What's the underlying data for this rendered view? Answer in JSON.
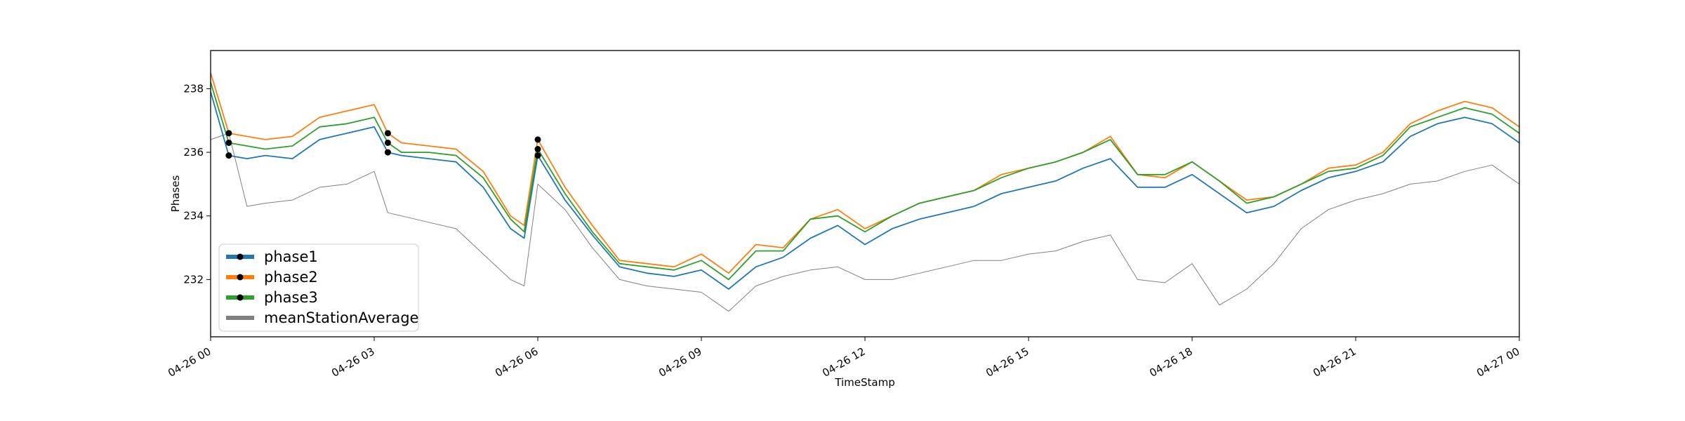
{
  "chart_data": {
    "type": "line",
    "title": "",
    "xlabel": "TimeStamp",
    "ylabel": "Phases",
    "xlim": [
      "2024-04-26 00:00",
      "2024-04-27 00:00"
    ],
    "ylim": [
      230.2,
      239.2
    ],
    "x_ticks": [
      {
        "value": "2024-04-26 00:00",
        "label": "04-26 00"
      },
      {
        "value": "2024-04-26 03:00",
        "label": "04-26 03"
      },
      {
        "value": "2024-04-26 06:00",
        "label": "04-26 06"
      },
      {
        "value": "2024-04-26 09:00",
        "label": "04-26 09"
      },
      {
        "value": "2024-04-26 12:00",
        "label": "04-26 12"
      },
      {
        "value": "2024-04-26 15:00",
        "label": "04-26 15"
      },
      {
        "value": "2024-04-26 18:00",
        "label": "04-26 18"
      },
      {
        "value": "2024-04-26 21:00",
        "label": "04-26 21"
      },
      {
        "value": "2024-04-27 00:00",
        "label": "04-27 00"
      }
    ],
    "y_ticks": [
      {
        "value": 232,
        "label": "232"
      },
      {
        "value": 234,
        "label": "234"
      },
      {
        "value": 236,
        "label": "236"
      },
      {
        "value": 238,
        "label": "238"
      }
    ],
    "grid": false,
    "legend": {
      "position": "lower-left"
    },
    "x": [
      "2024-04-26 00:00",
      "2024-04-26 00:20",
      "2024-04-26 00:40",
      "2024-04-26 01:00",
      "2024-04-26 01:30",
      "2024-04-26 02:00",
      "2024-04-26 02:30",
      "2024-04-26 03:00",
      "2024-04-26 03:15",
      "2024-04-26 03:30",
      "2024-04-26 04:00",
      "2024-04-26 04:30",
      "2024-04-26 05:00",
      "2024-04-26 05:30",
      "2024-04-26 05:45",
      "2024-04-26 06:00",
      "2024-04-26 06:30",
      "2024-04-26 07:00",
      "2024-04-26 07:30",
      "2024-04-26 08:00",
      "2024-04-26 08:30",
      "2024-04-26 09:00",
      "2024-04-26 09:30",
      "2024-04-26 10:00",
      "2024-04-26 10:30",
      "2024-04-26 11:00",
      "2024-04-26 11:30",
      "2024-04-26 12:00",
      "2024-04-26 12:30",
      "2024-04-26 13:00",
      "2024-04-26 13:30",
      "2024-04-26 14:00",
      "2024-04-26 14:30",
      "2024-04-26 15:00",
      "2024-04-26 15:30",
      "2024-04-26 16:00",
      "2024-04-26 16:30",
      "2024-04-26 17:00",
      "2024-04-26 17:30",
      "2024-04-26 18:00",
      "2024-04-26 18:30",
      "2024-04-26 19:00",
      "2024-04-26 19:30",
      "2024-04-26 20:00",
      "2024-04-26 20:30",
      "2024-04-26 21:00",
      "2024-04-26 21:30",
      "2024-04-26 22:00",
      "2024-04-26 22:30",
      "2024-04-26 23:00",
      "2024-04-26 23:30",
      "2024-04-27 00:00"
    ],
    "series": [
      {
        "name": "phase1",
        "color": "#1f77b4",
        "marker": "black-dot",
        "values": [
          237.9,
          235.9,
          235.8,
          235.9,
          235.8,
          236.4,
          236.6,
          236.8,
          236.0,
          235.9,
          235.8,
          235.7,
          234.9,
          233.6,
          233.3,
          235.9,
          234.5,
          233.4,
          232.4,
          232.2,
          232.1,
          232.3,
          231.7,
          232.4,
          232.7,
          233.3,
          233.7,
          233.1,
          233.6,
          233.9,
          234.1,
          234.3,
          234.7,
          234.9,
          235.1,
          235.5,
          235.8,
          234.9,
          234.9,
          235.3,
          234.7,
          234.1,
          234.3,
          234.8,
          235.2,
          235.4,
          235.7,
          236.5,
          236.9,
          237.1,
          236.9,
          236.3
        ]
      },
      {
        "name": "phase2",
        "color": "#ff7f0e",
        "marker": "black-dot",
        "values": [
          238.5,
          236.6,
          236.5,
          236.4,
          236.5,
          237.1,
          237.3,
          237.5,
          236.6,
          236.3,
          236.2,
          236.1,
          235.4,
          234.0,
          233.7,
          236.4,
          234.9,
          233.7,
          232.6,
          232.5,
          232.4,
          232.8,
          232.2,
          233.1,
          233.0,
          233.9,
          234.2,
          233.6,
          234.0,
          234.4,
          234.6,
          234.8,
          235.3,
          235.5,
          235.7,
          236.0,
          236.5,
          235.3,
          235.2,
          235.7,
          235.1,
          234.5,
          234.6,
          235.0,
          235.5,
          235.6,
          236.0,
          236.9,
          237.3,
          237.6,
          237.4,
          236.8
        ]
      },
      {
        "name": "phase3",
        "color": "#2ca02c",
        "marker": "black-dot",
        "values": [
          238.2,
          236.3,
          236.2,
          236.1,
          236.2,
          236.8,
          236.9,
          237.1,
          236.3,
          236.0,
          236.0,
          235.9,
          235.2,
          233.9,
          233.5,
          236.1,
          234.7,
          233.5,
          232.5,
          232.4,
          232.3,
          232.6,
          232.0,
          232.9,
          232.9,
          233.9,
          234.0,
          233.5,
          234.0,
          234.4,
          234.6,
          234.8,
          235.2,
          235.5,
          235.7,
          236.0,
          236.4,
          235.3,
          235.3,
          235.7,
          235.1,
          234.4,
          234.6,
          235.0,
          235.4,
          235.5,
          235.9,
          236.8,
          237.1,
          237.4,
          237.2,
          236.6
        ]
      },
      {
        "name": "meanStationAverage",
        "color": "#808080",
        "marker": "none",
        "values": [
          236.4,
          236.6,
          234.3,
          234.4,
          234.5,
          234.9,
          235.0,
          235.4,
          234.1,
          234.0,
          233.8,
          233.6,
          232.8,
          232.0,
          231.8,
          235.0,
          234.2,
          233.0,
          232.0,
          231.8,
          231.7,
          231.6,
          231.0,
          231.8,
          232.1,
          232.3,
          232.4,
          232.0,
          232.0,
          232.2,
          232.4,
          232.6,
          232.6,
          232.8,
          232.9,
          233.2,
          233.4,
          232.0,
          231.9,
          232.5,
          231.2,
          231.7,
          232.5,
          233.6,
          234.2,
          234.5,
          234.7,
          235.0,
          235.1,
          235.4,
          235.6,
          235.0
        ]
      }
    ]
  }
}
